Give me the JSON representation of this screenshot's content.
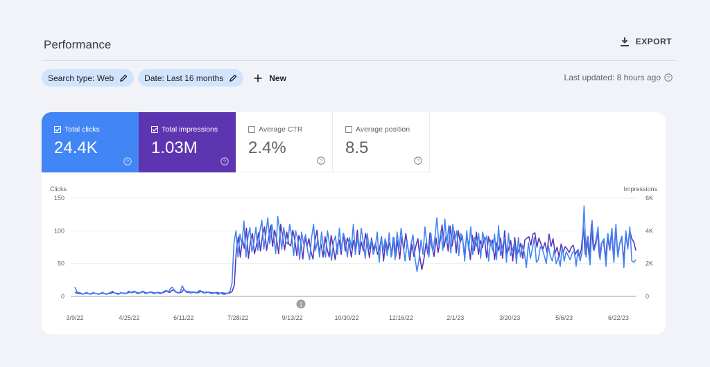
{
  "header": {
    "title": "Performance",
    "export_label": "EXPORT"
  },
  "filters": [
    {
      "label": "Search type: Web"
    },
    {
      "label": "Date: Last 16 months"
    }
  ],
  "new_label": "New",
  "last_updated": "Last updated: 8 hours ago",
  "metrics": [
    {
      "label": "Total clicks",
      "value": "24.4K",
      "checked": true,
      "color": "#4285f4"
    },
    {
      "label": "Total impressions",
      "value": "1.03M",
      "checked": true,
      "color": "#5e35b1"
    },
    {
      "label": "Average CTR",
      "value": "2.4%",
      "checked": false
    },
    {
      "label": "Average position",
      "value": "8.5",
      "checked": false
    }
  ],
  "chart_data": {
    "type": "line",
    "left_axis_label": "Clicks",
    "right_axis_label": "Impressions",
    "left_ticks": [
      "150",
      "100",
      "50",
      "0"
    ],
    "right_ticks": [
      "6K",
      "4K",
      "2K",
      "0"
    ],
    "left_ylim": [
      0,
      150
    ],
    "right_ylim": [
      0,
      6000
    ],
    "x_ticks": [
      "3/9/22",
      "4/25/22",
      "6/11/22",
      "7/28/22",
      "9/13/22",
      "10/30/22",
      "12/16/22",
      "2/1/23",
      "3/20/23",
      "5/6/23",
      "6/22/23"
    ],
    "annotation": "1",
    "grid": true,
    "series": [
      {
        "name": "Clicks",
        "axis": "left",
        "color": "#4285f4",
        "values": [
          14,
          7,
          6,
          5,
          3,
          5,
          6,
          4,
          3,
          6,
          5,
          4,
          3,
          5,
          6,
          4,
          3,
          5,
          6,
          8,
          5,
          4,
          3,
          6,
          5,
          4,
          5,
          8,
          6,
          7,
          8,
          5,
          4,
          6,
          8,
          5,
          4,
          6,
          7,
          5,
          4,
          6,
          5,
          4,
          6,
          8,
          9,
          6,
          12,
          14,
          8,
          6,
          5,
          7,
          16,
          10,
          6,
          8,
          5,
          7,
          6,
          5,
          8,
          9,
          6,
          5,
          7,
          6,
          5,
          4,
          6,
          5,
          3,
          5,
          4,
          3,
          4,
          5,
          8,
          20,
          82,
          100,
          60,
          95,
          78,
          115,
          60,
          90,
          105,
          68,
          82,
          105,
          70,
          100,
          116,
          72,
          95,
          120,
          80,
          110,
          92,
          65,
          122,
          98,
          72,
          105,
          84,
          80,
          110,
          92,
          62,
          100,
          88,
          56,
          98,
          80,
          94,
          70,
          56,
          90,
          110,
          70,
          85,
          60,
          98,
          74,
          60,
          100,
          80,
          55,
          82,
          92,
          64,
          104,
          70,
          96,
          85,
          60,
          90,
          74,
          110,
          64,
          88,
          70,
          104,
          82,
          58,
          96,
          72,
          86,
          64,
          75,
          98,
          52,
          90,
          70,
          88,
          62,
          97,
          60,
          90,
          56,
          98,
          72,
          104,
          78,
          54,
          84,
          60,
          80,
          94,
          58,
          38,
          56,
          86,
          64,
          106,
          78,
          60,
          96,
          68,
          90,
          120,
          78,
          100,
          70,
          118,
          80,
          108,
          66,
          110,
          86,
          100,
          62,
          96,
          88,
          54,
          100,
          70,
          106,
          64,
          90,
          76,
          96,
          58,
          98,
          82,
          92,
          54,
          86,
          70,
          95,
          56,
          108,
          62,
          76,
          90,
          52,
          96,
          62,
          70,
          82,
          50,
          90,
          60,
          78,
          66,
          44,
          82,
          58,
          72,
          90,
          52,
          56,
          76,
          72,
          62,
          50,
          78,
          62,
          54,
          70,
          50,
          60,
          46,
          76,
          54,
          68,
          62,
          56,
          66,
          70,
          46,
          72,
          54,
          68,
          138,
          60,
          92,
          48,
          116,
          70,
          80,
          106,
          56,
          82,
          88,
          46,
          96,
          70,
          104,
          52,
          110,
          60,
          82,
          92,
          44,
          100,
          72,
          106,
          54,
          52,
          56
        ]
      },
      {
        "name": "Impressions",
        "axis": "right",
        "color": "#5e35b1",
        "values": [
          240,
          200,
          180,
          160,
          140,
          180,
          200,
          160,
          150,
          200,
          180,
          160,
          140,
          180,
          200,
          160,
          150,
          180,
          200,
          240,
          200,
          180,
          160,
          220,
          200,
          180,
          200,
          260,
          220,
          260,
          280,
          220,
          200,
          240,
          300,
          220,
          200,
          240,
          260,
          220,
          200,
          240,
          220,
          200,
          240,
          300,
          320,
          240,
          360,
          400,
          280,
          240,
          220,
          260,
          440,
          320,
          240,
          280,
          220,
          260,
          240,
          220,
          280,
          300,
          240,
          220,
          260,
          240,
          220,
          200,
          240,
          220,
          180,
          220,
          200,
          180,
          200,
          220,
          320,
          680,
          2800,
          3640,
          2400,
          3520,
          2920,
          4160,
          2320,
          3360,
          3840,
          2600,
          3120,
          3880,
          2760,
          3720,
          4240,
          2800,
          3560,
          4320,
          3040,
          4040,
          3480,
          2600,
          4400,
          3640,
          2840,
          3920,
          3200,
          3080,
          4040,
          3440,
          2480,
          3720,
          3320,
          2280,
          3640,
          3040,
          3520,
          2720,
          2280,
          3400,
          4040,
          2760,
          3200,
          2400,
          3640,
          2880,
          2400,
          3720,
          3040,
          2240,
          3120,
          3440,
          2560,
          3840,
          2760,
          3560,
          3200,
          2400,
          3400,
          2880,
          4040,
          2560,
          3320,
          2760,
          3840,
          3120,
          2360,
          3560,
          2840,
          3240,
          2560,
          2920,
          3640,
          2160,
          3400,
          2760,
          3320,
          2480,
          3600,
          2440,
          3400,
          2280,
          3640,
          2840,
          3840,
          3000,
          2200,
          3200,
          2440,
          3080,
          3520,
          2360,
          1640,
          2280,
          3240,
          2560,
          3880,
          3000,
          2440,
          3560,
          2680,
          3360,
          4360,
          3000,
          3720,
          2760,
          4280,
          3080,
          3960,
          2640,
          4000,
          3280,
          3720,
          2520,
          3560,
          3320,
          2240,
          3720,
          2800,
          3920,
          2560,
          3400,
          2960,
          3600,
          2360,
          3640,
          3120,
          3440,
          2240,
          3280,
          2800,
          3560,
          2320,
          4000,
          2520,
          2920,
          3400,
          2160,
          3600,
          2520,
          2800,
          3240,
          2320,
          3440,
          3560,
          3640,
          3120,
          3800,
          3880,
          3000,
          3560,
          3200,
          2880,
          3280,
          2680,
          3800,
          3040,
          3520,
          2640,
          3000,
          2400,
          3200,
          2680,
          3040,
          2880,
          2680,
          3000,
          3120,
          2560,
          2800,
          2400,
          2880,
          4200,
          2560,
          3600,
          2240,
          4400,
          2840,
          3240,
          3960,
          2400,
          3240,
          3440,
          2240,
          3680,
          2880,
          3960,
          2280,
          4160,
          2560,
          3200,
          3600,
          2160,
          3800,
          2960,
          4000,
          3520,
          3320,
          2800
        ]
      }
    ]
  }
}
